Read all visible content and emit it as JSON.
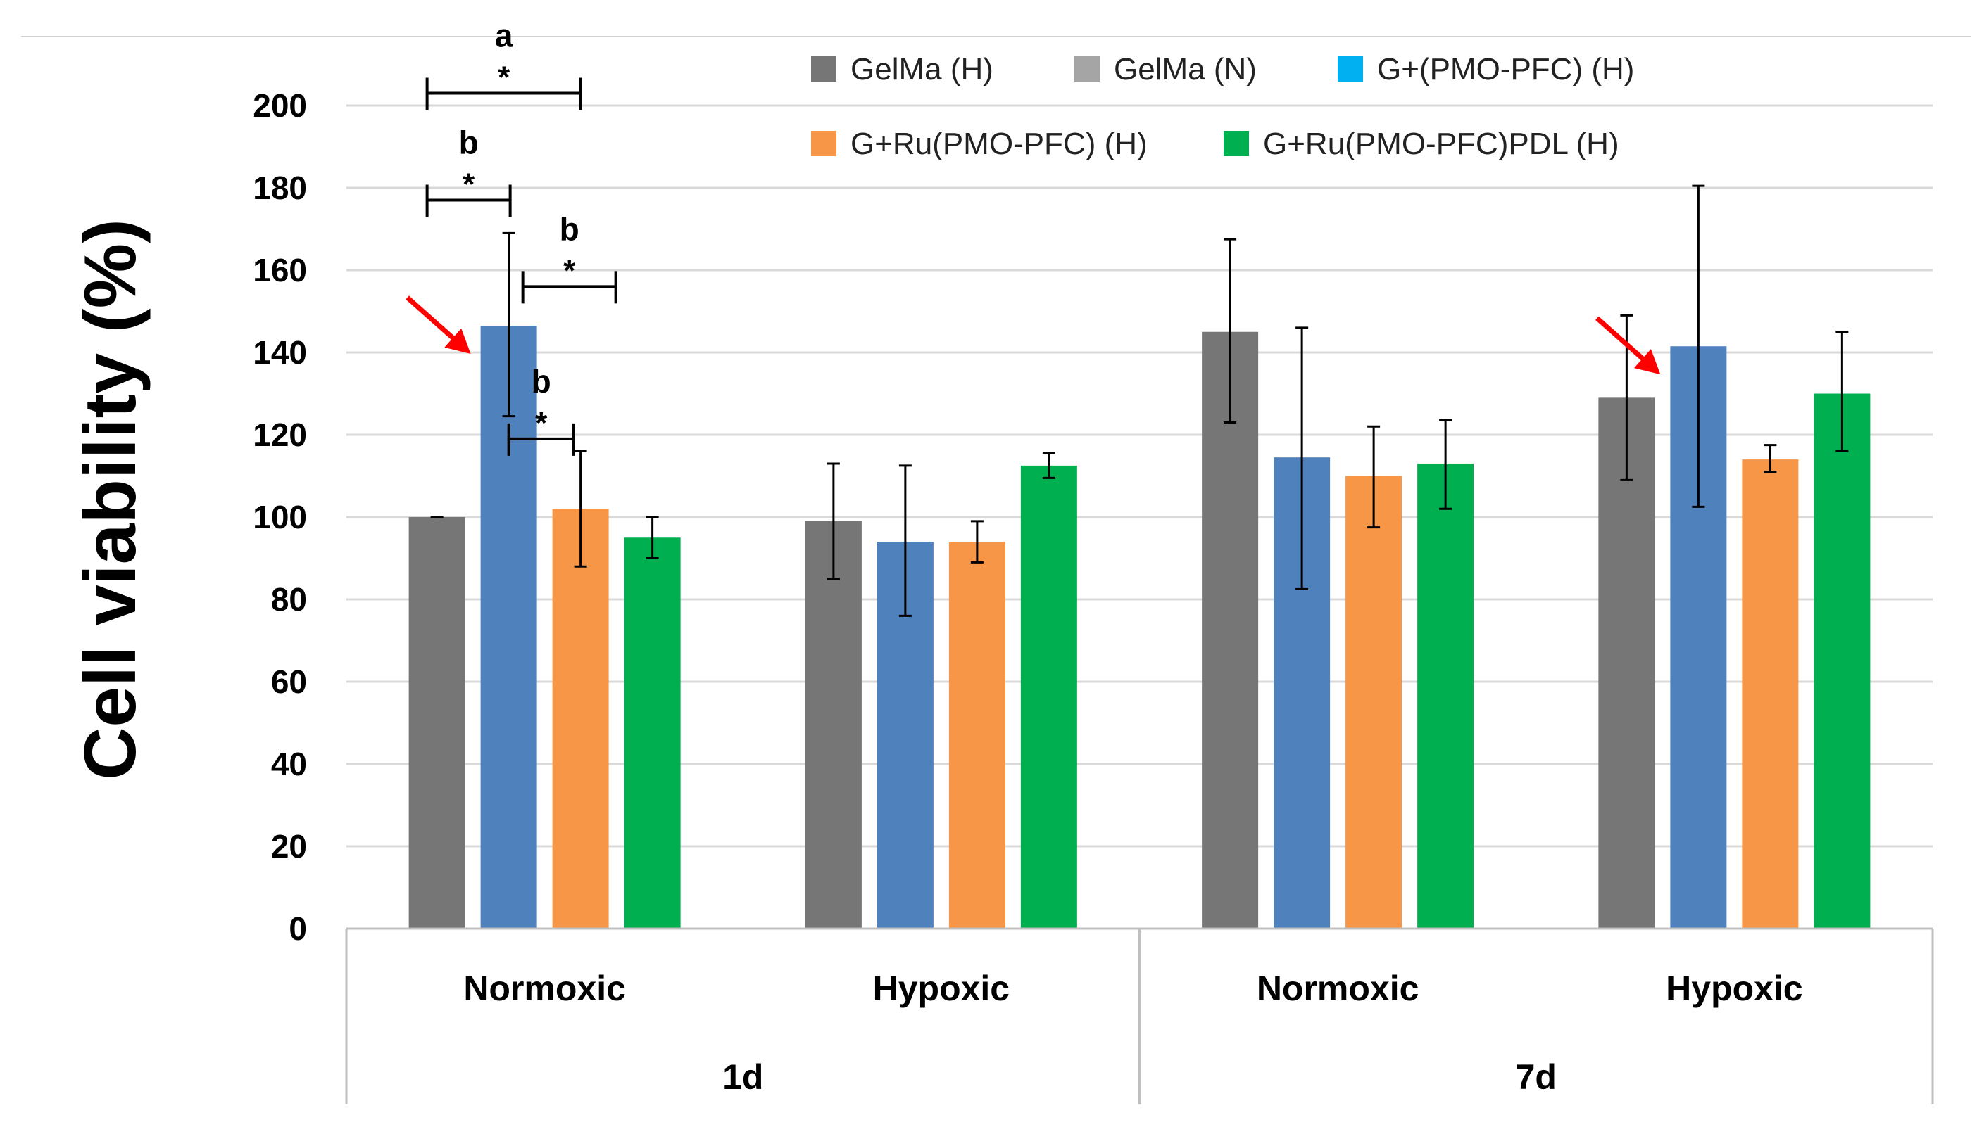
{
  "chart_data": {
    "type": "bar",
    "title": "",
    "xlabel": "",
    "ylabel": "Cell viability (%)",
    "ylim": [
      0,
      200
    ],
    "yticks": [
      0,
      20,
      40,
      60,
      80,
      100,
      120,
      140,
      160,
      180,
      200
    ],
    "grid": true,
    "legend_position": "top-right",
    "groups": [
      {
        "time": "1d",
        "condition": "Normoxic"
      },
      {
        "time": "1d",
        "condition": "Hypoxic"
      },
      {
        "time": "7d",
        "condition": "Normoxic"
      },
      {
        "time": "7d",
        "condition": "Hypoxic"
      }
    ],
    "time_labels": [
      "1d",
      "7d"
    ],
    "legend": [
      {
        "name": "GelMa (H)",
        "color": "#767676"
      },
      {
        "name": "GelMa (N)",
        "color": "#A5A5A5"
      },
      {
        "name": "G+(PMO-PFC) (H)",
        "color": "#00B0F0"
      },
      {
        "name": "G+Ru(PMO-PFC) (H)",
        "color": "#F79646"
      },
      {
        "name": "G+Ru(PMO-PFC)PDL (H)",
        "color": "#00B050"
      }
    ],
    "bars": [
      {
        "group": 0,
        "color": "#767676",
        "value": 100,
        "error_low": 100,
        "error_high": 100
      },
      {
        "group": 0,
        "color": "#4F81BD",
        "value": 146.5,
        "error_low": 124.5,
        "error_high": 169
      },
      {
        "group": 0,
        "color": "#F79646",
        "value": 102,
        "error_low": 88,
        "error_high": 116
      },
      {
        "group": 0,
        "color": "#00B050",
        "value": 95,
        "error_low": 90,
        "error_high": 100
      },
      {
        "group": 1,
        "color": "#767676",
        "value": 99,
        "error_low": 85,
        "error_high": 113
      },
      {
        "group": 1,
        "color": "#4F81BD",
        "value": 94,
        "error_low": 76,
        "error_high": 112.5
      },
      {
        "group": 1,
        "color": "#F79646",
        "value": 94,
        "error_low": 89,
        "error_high": 99
      },
      {
        "group": 1,
        "color": "#00B050",
        "value": 112.5,
        "error_low": 109.5,
        "error_high": 115.5
      },
      {
        "group": 2,
        "color": "#767676",
        "value": 145,
        "error_low": 123,
        "error_high": 167.5
      },
      {
        "group": 2,
        "color": "#4F81BD",
        "value": 114.5,
        "error_low": 82.5,
        "error_high": 146
      },
      {
        "group": 2,
        "color": "#F79646",
        "value": 110,
        "error_low": 97.5,
        "error_high": 122
      },
      {
        "group": 2,
        "color": "#00B050",
        "value": 113,
        "error_low": 102,
        "error_high": 123.5
      },
      {
        "group": 3,
        "color": "#767676",
        "value": 129,
        "error_low": 109,
        "error_high": 149
      },
      {
        "group": 3,
        "color": "#4F81BD",
        "value": 141.5,
        "error_low": 102.5,
        "error_high": 180.5
      },
      {
        "group": 3,
        "color": "#F79646",
        "value": 114,
        "error_low": 111,
        "error_high": 117.5
      },
      {
        "group": 3,
        "color": "#00B050",
        "value": 130,
        "error_low": 116,
        "error_high": 145
      }
    ],
    "significance": [
      {
        "letter": "a",
        "star": "*",
        "from_bar": 0,
        "to_bar": 2,
        "y_value": 203
      },
      {
        "letter": "b",
        "star": "*",
        "from_bar": 0,
        "to_bar": 1,
        "y_value": 177
      },
      {
        "letter": "b",
        "star": "*",
        "from_bar": 1,
        "to_bar": 2,
        "y_value": 156
      },
      {
        "letter": "b",
        "star": "*",
        "from_bar": 1,
        "to_bar": 2,
        "y_value": 119
      }
    ],
    "arrows": [
      {
        "target_bar": 1,
        "color": "#FF0000"
      },
      {
        "target_bar": 13,
        "color": "#FF0000"
      }
    ]
  }
}
